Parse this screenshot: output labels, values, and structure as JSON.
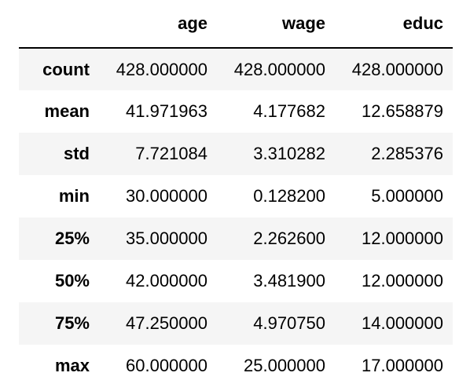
{
  "table": {
    "index_header": "",
    "columns": [
      "age",
      "wage",
      "educ"
    ],
    "rows": [
      {
        "label": "count",
        "values": [
          "428.000000",
          "428.000000",
          "428.000000"
        ]
      },
      {
        "label": "mean",
        "values": [
          "41.971963",
          "4.177682",
          "12.658879"
        ]
      },
      {
        "label": "std",
        "values": [
          "7.721084",
          "3.310282",
          "2.285376"
        ]
      },
      {
        "label": "min",
        "values": [
          "30.000000",
          "0.128200",
          "5.000000"
        ]
      },
      {
        "label": "25%",
        "values": [
          "35.000000",
          "2.262600",
          "12.000000"
        ]
      },
      {
        "label": "50%",
        "values": [
          "42.000000",
          "3.481900",
          "12.000000"
        ]
      },
      {
        "label": "75%",
        "values": [
          "47.250000",
          "4.970750",
          "14.000000"
        ]
      },
      {
        "label": "max",
        "values": [
          "60.000000",
          "25.000000",
          "17.000000"
        ]
      }
    ]
  }
}
